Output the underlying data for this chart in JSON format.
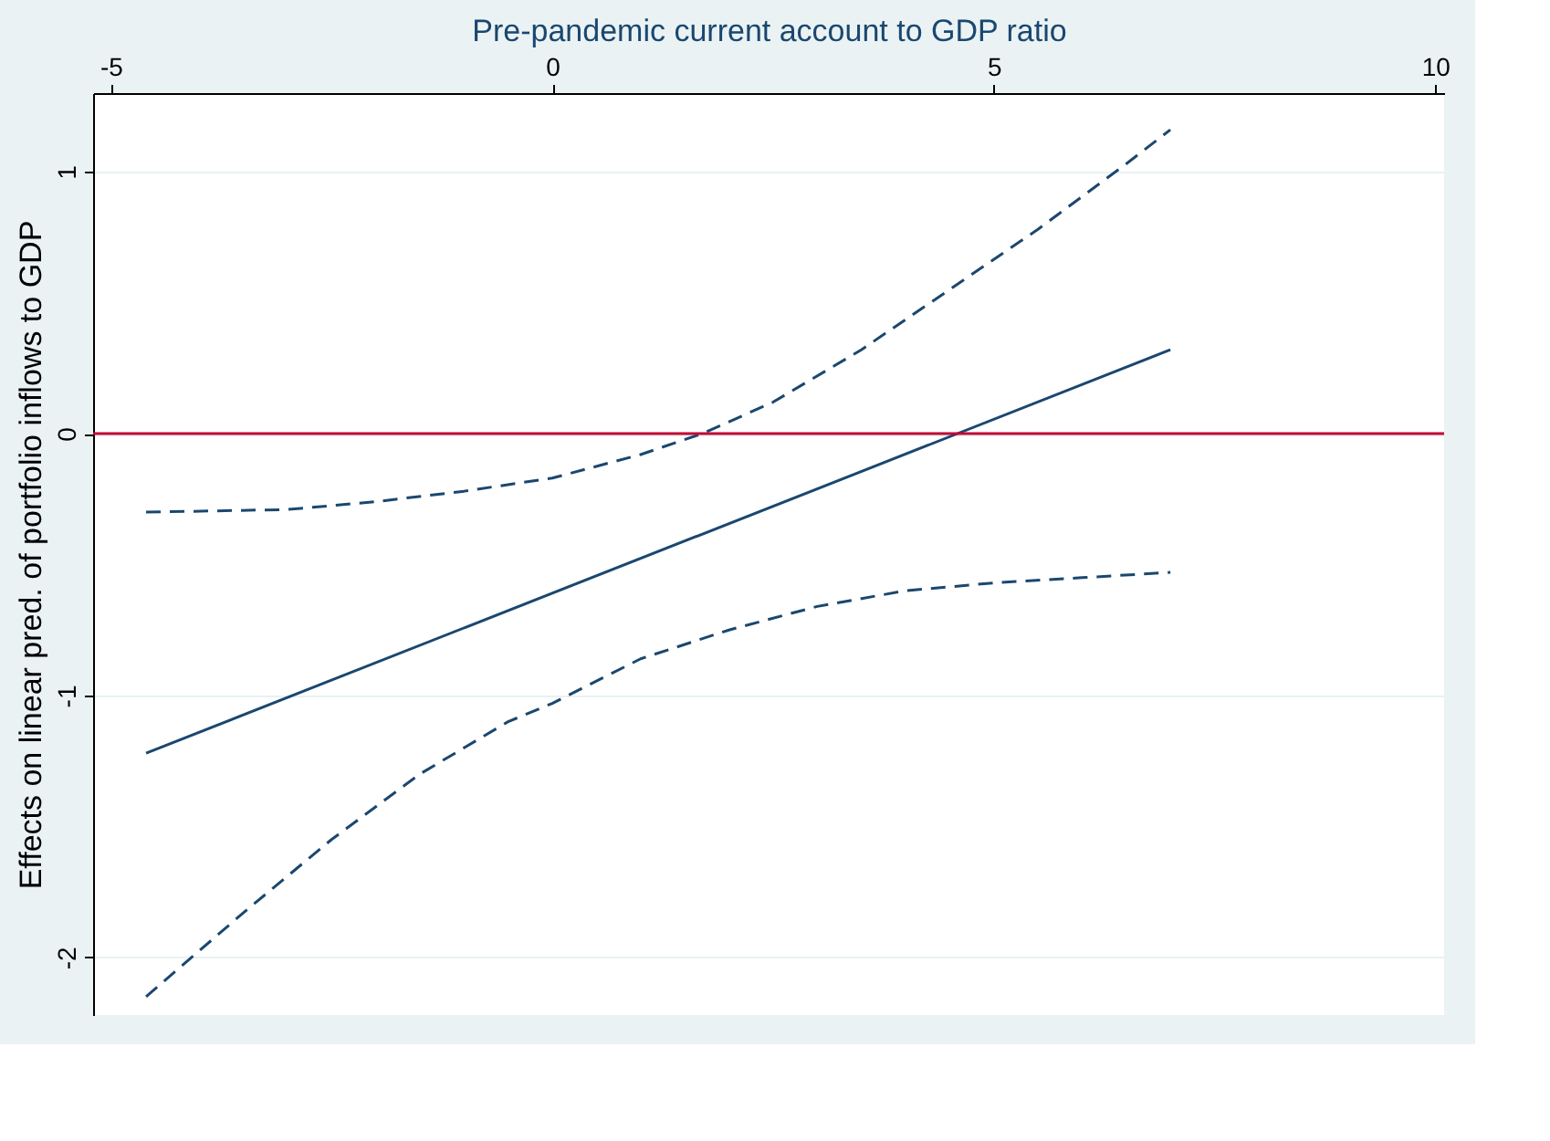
{
  "chart_data": {
    "type": "line",
    "xlabel": "Pre-pandemic current account to GDP ratio",
    "ylabel": "Effects on linear pred. of portfolio inflows to GDP",
    "xlim": [
      -5.2,
      10.1
    ],
    "xticks": [
      -5,
      0,
      5,
      10
    ],
    "ylim": [
      -2.22,
      1.3
    ],
    "yticks": [
      -2,
      -1,
      0,
      1
    ],
    "grid": "y",
    "series": [
      {
        "color": "#1a476f",
        "line_style": "solid",
        "x": [
          -4.6,
          7
        ],
        "values": [
          -1.22,
          0.32
        ]
      },
      {
        "color": "#1a476f",
        "line_style": "dashed",
        "x": [
          -4.6,
          -3,
          -2,
          -1,
          0,
          1,
          1.7,
          2.5,
          3.5,
          4.5,
          5.5,
          6.5,
          7
        ],
        "values": [
          -0.3,
          -0.29,
          -0.26,
          -0.22,
          -0.17,
          -0.08,
          0.0,
          0.12,
          0.32,
          0.55,
          0.78,
          1.03,
          1.16
        ]
      },
      {
        "color": "#1a476f",
        "line_style": "dashed",
        "x": [
          -4.6,
          -3.5,
          -2.5,
          -1.5,
          -0.5,
          0,
          1,
          2,
          3,
          4,
          5,
          6,
          7
        ],
        "values": [
          -2.15,
          -1.83,
          -1.55,
          -1.3,
          -1.1,
          -1.03,
          -0.86,
          -0.75,
          -0.66,
          -0.6,
          -0.57,
          -0.55,
          -0.53
        ]
      }
    ],
    "ref_lines": [
      {
        "axis": "y",
        "value": 0,
        "color": "#c10534"
      }
    ]
  }
}
